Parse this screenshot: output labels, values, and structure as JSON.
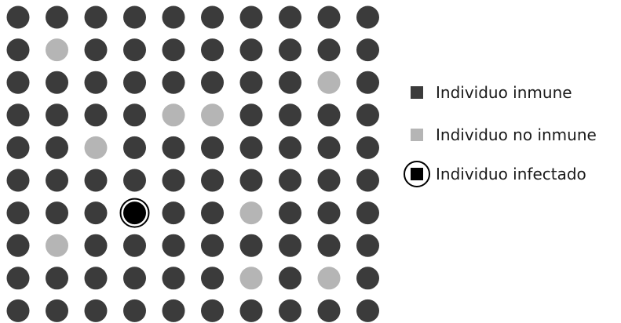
{
  "diagram": {
    "rows": 10,
    "cols": 10,
    "colors": {
      "immune": "#3b3b3b",
      "non_immune": "#b5b5b5",
      "infected": "#000000"
    },
    "non_immune_cells": [
      [
        1,
        1
      ],
      [
        2,
        8
      ],
      [
        3,
        4
      ],
      [
        3,
        5
      ],
      [
        4,
        2
      ],
      [
        6,
        6
      ],
      [
        7,
        1
      ],
      [
        8,
        6
      ],
      [
        8,
        8
      ]
    ],
    "infected_cells": [
      [
        6,
        3
      ]
    ]
  },
  "legend": {
    "immune_label": "Individuo inmune",
    "non_immune_label": "Individuo no inmune",
    "infected_label": "Individuo infectado"
  }
}
